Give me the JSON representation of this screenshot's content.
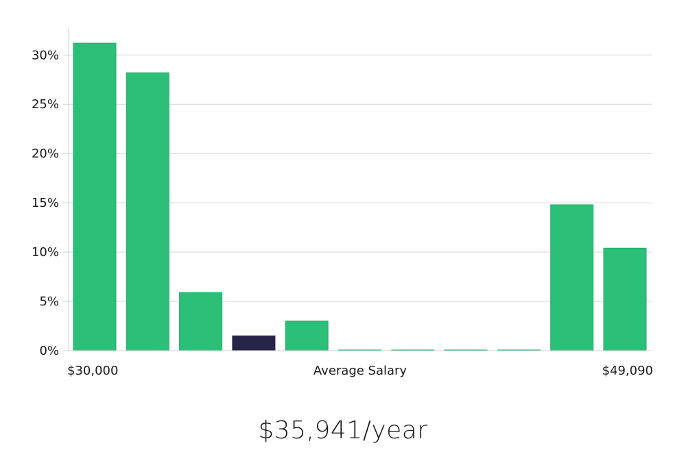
{
  "chart_data": {
    "type": "bar",
    "title": "",
    "xlabel": "Average Salary",
    "ylabel": "",
    "x_min_label": "$30,000",
    "x_max_label": "$49,090",
    "y_tick_labels": [
      "0%",
      "5%",
      "10%",
      "15%",
      "20%",
      "25%",
      "30%"
    ],
    "y_ticks": [
      0,
      5,
      10,
      15,
      20,
      25,
      30
    ],
    "ylim": [
      0,
      32.8
    ],
    "values": [
      31.2,
      28.2,
      5.9,
      1.5,
      3.0,
      0.05,
      0.05,
      0.05,
      0.05,
      14.8,
      10.4
    ],
    "highlight_index": 3,
    "colors": {
      "bar": "#2bbf77",
      "bar_edge": "#1fae68",
      "highlight": "#27244a",
      "grid": "#d6d6d6",
      "axis": "#cfcfcf"
    }
  },
  "summary": {
    "average_salary_text": "$35,941/year"
  }
}
